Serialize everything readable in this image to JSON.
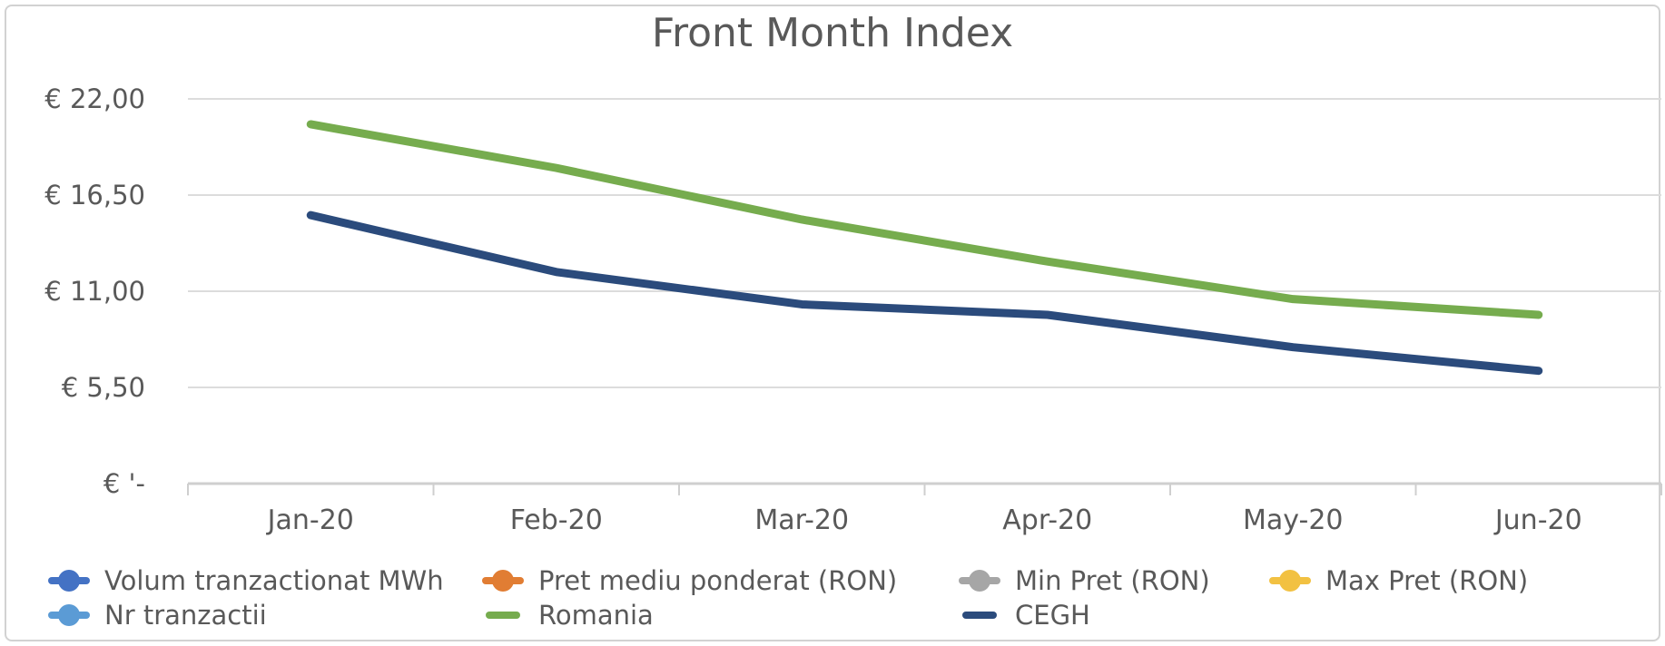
{
  "chart_data": {
    "type": "line",
    "title": "Front Month Index",
    "categories": [
      "Jan-20",
      "Feb-20",
      "Mar-20",
      "Apr-20",
      "May-20",
      "Jun-20"
    ],
    "series": [
      {
        "name": "Romania",
        "color": "#76AC4E",
        "values": [
          20.55,
          18.05,
          15.1,
          12.7,
          10.55,
          9.65
        ]
      },
      {
        "name": "CEGH",
        "color": "#2B4B7C",
        "values": [
          15.35,
          12.1,
          10.25,
          9.65,
          7.8,
          6.45
        ]
      }
    ],
    "y_axis": {
      "currency": "EUR",
      "tick_labels": [
        "€ 22,00",
        "€ 16,50",
        "€ 11,00",
        "€ 5,50",
        "€ '-"
      ],
      "tick_values": [
        22,
        16.5,
        11,
        5.5,
        0
      ],
      "min": 0,
      "max": 22
    },
    "x_axis": {
      "tick_labels": [
        "Jan-20",
        "Feb-20",
        "Mar-20",
        "Apr-20",
        "May-20",
        "Jun-20"
      ]
    },
    "grid": true,
    "legend_position": "bottom",
    "legend": {
      "items": [
        {
          "label": "Volum tranzactionat MWh",
          "color": "#4472C4",
          "marker": "circle-line"
        },
        {
          "label": "Pret mediu ponderat (RON)",
          "color": "#E17D33",
          "marker": "circle-line"
        },
        {
          "label": "Min Pret (RON)",
          "color": "#A6A6A6",
          "marker": "circle-line"
        },
        {
          "label": "Max Pret (RON)",
          "color": "#F2C142",
          "marker": "circle-line"
        },
        {
          "label": "Nr tranzactii",
          "color": "#5B9BD5",
          "marker": "circle-line"
        },
        {
          "label": "Romania",
          "color": "#76AC4E",
          "marker": "line"
        },
        {
          "label": "CEGH",
          "color": "#2B4B7C",
          "marker": "line"
        }
      ]
    },
    "colors": {
      "gridline": "#DCDCDC",
      "axis_line": "#CFCFCF",
      "text": "#595959"
    }
  }
}
